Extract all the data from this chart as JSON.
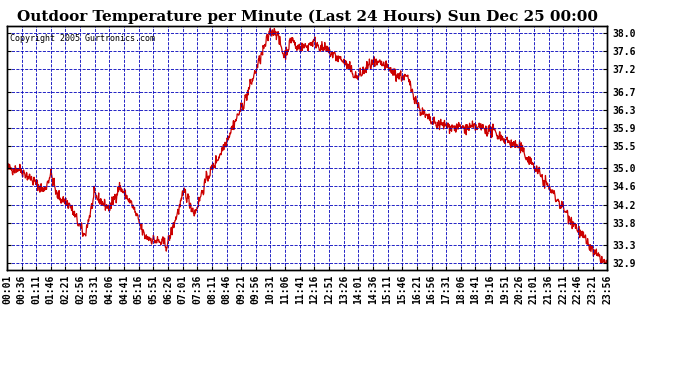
{
  "title": "Outdoor Temperature per Minute (Last 24 Hours) Sun Dec 25 00:00",
  "copyright": "Copyright 2005 Gurtronics.com",
  "ylabel_right": [
    "38.0",
    "37.6",
    "37.2",
    "36.7",
    "36.3",
    "35.9",
    "35.5",
    "35.0",
    "34.6",
    "34.2",
    "33.8",
    "33.3",
    "32.9"
  ],
  "yticks": [
    38.0,
    37.6,
    37.2,
    36.7,
    36.3,
    35.9,
    35.5,
    35.0,
    34.6,
    34.2,
    33.8,
    33.3,
    32.9
  ],
  "ymin": 32.75,
  "ymax": 38.15,
  "line_color": "#cc0000",
  "bg_color": "#ffffff",
  "plot_bg_color": "#ffffff",
  "grid_color": "#0000bb",
  "title_fontsize": 11,
  "tick_fontsize": 7,
  "xtick_labels": [
    "00:01",
    "00:36",
    "01:11",
    "01:46",
    "02:21",
    "02:56",
    "03:31",
    "04:06",
    "04:41",
    "05:16",
    "05:51",
    "06:26",
    "07:01",
    "07:36",
    "08:11",
    "08:46",
    "09:21",
    "09:56",
    "10:31",
    "11:06",
    "11:41",
    "12:16",
    "12:51",
    "13:26",
    "14:01",
    "14:36",
    "15:11",
    "15:46",
    "16:21",
    "16:56",
    "17:31",
    "18:06",
    "18:41",
    "19:16",
    "19:51",
    "20:26",
    "21:01",
    "21:36",
    "22:11",
    "22:46",
    "23:21",
    "23:56"
  ]
}
